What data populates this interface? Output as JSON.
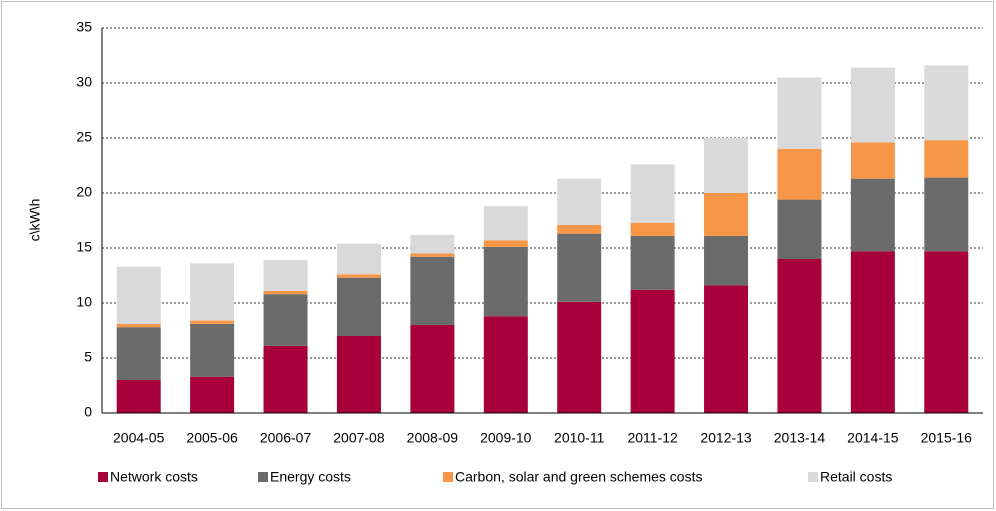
{
  "chart_data": {
    "type": "stacked_bar",
    "y_label": "c\\kW\\h",
    "categories": [
      "2004-05",
      "2005-06",
      "2006-07",
      "2007-08",
      "2008-09",
      "2009-10",
      "2010-11",
      "2011-12",
      "2012-13",
      "2013-14",
      "2014-15",
      "2015-16"
    ],
    "series": [
      {
        "name": "Network costs",
        "color": "#a8003b",
        "values": [
          3.0,
          3.3,
          6.1,
          7.0,
          8.0,
          8.8,
          10.1,
          11.2,
          11.6,
          14.0,
          14.7,
          14.7
        ]
      },
      {
        "name": "Energy costs",
        "color": "#6b6b6b",
        "values": [
          4.8,
          4.8,
          4.7,
          5.3,
          6.2,
          6.3,
          6.2,
          4.9,
          4.5,
          5.4,
          6.6,
          6.7
        ]
      },
      {
        "name": "Carbon, solar and green schemes costs",
        "color": "#f79646",
        "values": [
          0.3,
          0.3,
          0.3,
          0.3,
          0.3,
          0.6,
          0.8,
          1.2,
          3.9,
          4.6,
          3.3,
          3.4
        ]
      },
      {
        "name": "Retail costs",
        "color": "#d9d9d9",
        "values": [
          5.2,
          5.2,
          2.8,
          2.8,
          1.7,
          3.1,
          4.2,
          5.3,
          5.0,
          6.5,
          6.8,
          6.8
        ]
      }
    ],
    "ylim": [
      0,
      35
    ],
    "yticks": [
      0,
      5,
      10,
      15,
      20,
      25,
      30,
      35
    ],
    "grid": true,
    "legend": "bottom"
  }
}
